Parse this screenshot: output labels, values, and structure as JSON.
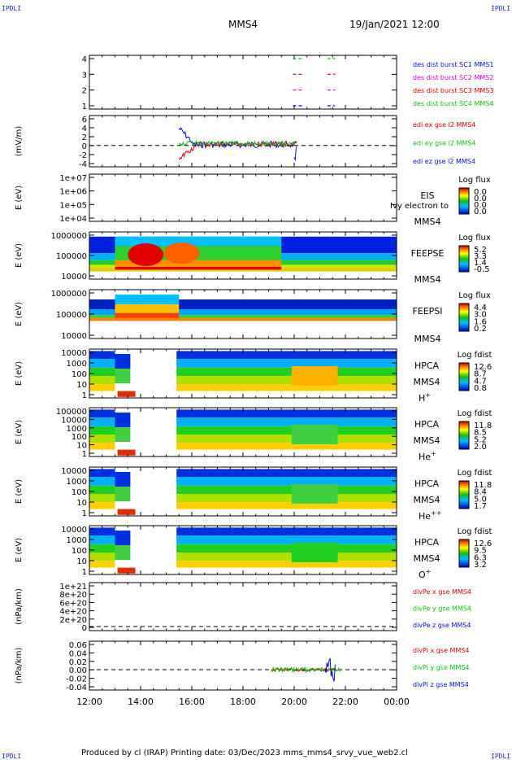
{
  "corners": {
    "tl": "IPDLI",
    "tr": "IPDLI",
    "bl": "IPDLI",
    "br": "IPDLI"
  },
  "header": {
    "spacecraft": "MMS4",
    "datetime": "19/Jan/2021 12:00"
  },
  "footer": {
    "text": "Produced by cl (IRAP)   Printing date: 03/Dec/2023   mms_mms4_srvy_vue_web2.cl"
  },
  "colors": {
    "red": "#d40000",
    "green": "#10c010",
    "blue": "#0010d0",
    "magenta": "#d000d0",
    "spec_low": "#0000cc",
    "spec_high": "#cc0000"
  },
  "time_axis": {
    "ticks": [
      "12:00",
      "14:00",
      "16:00",
      "18:00",
      "20:00",
      "22:00",
      "00:00"
    ]
  },
  "chart_data": [
    {
      "id": "burst",
      "type": "line",
      "ylabel": "",
      "yticks": [
        "4",
        "3",
        "2",
        "1"
      ],
      "legend": [
        {
          "label": "des dist burst SC1 MMS1",
          "color": "#0010d0"
        },
        {
          "label": "des dist burst SC2 MMS2",
          "color": "#d000d0"
        },
        {
          "label": "des dist burst SC3 MMS3",
          "color": "#d40000"
        },
        {
          "label": "des dist burst SC4 MMS4",
          "color": "#10c010"
        }
      ],
      "series": [
        {
          "level": 4,
          "intervals": [
            [
              19.95,
              20.35
            ],
            [
              21.3,
              21.6
            ]
          ]
        },
        {
          "level": 3,
          "intervals": [
            [
              19.95,
              20.35
            ],
            [
              21.3,
              21.6
            ]
          ]
        },
        {
          "level": 2,
          "intervals": [
            [
              19.95,
              20.35
            ],
            [
              21.3,
              21.6
            ]
          ]
        },
        {
          "level": 1,
          "intervals": [
            [
              19.95,
              20.35
            ],
            [
              21.3,
              21.6
            ]
          ]
        }
      ]
    },
    {
      "id": "edi",
      "type": "line",
      "ylabel": "(mV/m)",
      "yticks": [
        "6",
        "4",
        "2",
        "0",
        "-2",
        "-4"
      ],
      "ylim": [
        -5,
        7
      ],
      "legend": [
        {
          "label": "edi ex gse l2 MMS4",
          "color": "#d40000"
        },
        {
          "label": "edi ey gse l2 MMS4",
          "color": "#10c010"
        },
        {
          "label": "edi ez gse l2 MMS4",
          "color": "#0010d0"
        }
      ]
    },
    {
      "id": "eis",
      "type": "heatmap",
      "ylabel": "E (eV)",
      "yticks": [
        "1e+07",
        "1e+06",
        "1e+05",
        "1e+04"
      ],
      "instrument": "EIS",
      "subinstrument": "Ivy electron to",
      "spacecraft": "MMS4",
      "cbar_title": "Log flux",
      "cbar_values": [
        "0.0",
        "0.0",
        "0.0",
        "0.0"
      ]
    },
    {
      "id": "feepse",
      "type": "heatmap",
      "ylabel": "E (eV)",
      "yticks": [
        "1000000",
        "100000",
        "10000"
      ],
      "instrument": "FEEPSE",
      "spacecraft": "MMS4",
      "cbar_title": "Log flux",
      "cbar_values": [
        "5.2",
        "3.3",
        "1.4",
        "-0.5"
      ]
    },
    {
      "id": "feepsi",
      "type": "heatmap",
      "ylabel": "E (eV)",
      "yticks": [
        "1000000",
        "100000",
        "10000"
      ],
      "instrument": "FEEPSI",
      "spacecraft": "MMS4",
      "cbar_title": "Log flux",
      "cbar_values": [
        "4.4",
        "3.0",
        "1.6",
        "0.2"
      ]
    },
    {
      "id": "hpca_h",
      "type": "heatmap",
      "ylabel": "E (eV)",
      "yticks": [
        "10000",
        "1000",
        "100",
        "10",
        "1"
      ],
      "instrument": "HPCA",
      "spacecraft": "MMS4",
      "species": "H",
      "charge": "+",
      "cbar_title": "Log fdist",
      "cbar_values": [
        "12.6",
        "8.7",
        "4.7",
        "0.8"
      ]
    },
    {
      "id": "hpca_he1",
      "type": "heatmap",
      "ylabel": "E (eV)",
      "yticks": [
        "100000",
        "10000",
        "1000",
        "100",
        "10",
        "1"
      ],
      "instrument": "HPCA",
      "spacecraft": "MMS4",
      "species": "He",
      "charge": "+",
      "cbar_title": "Log fdist",
      "cbar_values": [
        "11.8",
        "8.5",
        "5.2",
        "2.0"
      ]
    },
    {
      "id": "hpca_he2",
      "type": "heatmap",
      "ylabel": "E (eV)",
      "yticks": [
        "10000",
        "1000",
        "100",
        "10",
        "1"
      ],
      "instrument": "HPCA",
      "spacecraft": "MMS4",
      "species": "He",
      "charge": "++",
      "cbar_title": "Log fdist",
      "cbar_values": [
        "11.8",
        "8.4",
        "5.0",
        "1.7"
      ]
    },
    {
      "id": "hpca_o",
      "type": "heatmap",
      "ylabel": "E (eV)",
      "yticks": [
        "10000",
        "1000",
        "100",
        "10",
        "1"
      ],
      "instrument": "HPCA",
      "spacecraft": "MMS4",
      "species": "O",
      "charge": "+",
      "cbar_title": "Log fdist",
      "cbar_values": [
        "12.6",
        "9.5",
        "6.3",
        "3.2"
      ]
    },
    {
      "id": "divpe",
      "type": "line",
      "ylabel": "(nPa/km)",
      "yticks": [
        "1e+21",
        "8e+20",
        "6e+20",
        "4e+20",
        "2e+20",
        "0"
      ],
      "legend": [
        {
          "label": "divPe x gse MMS4",
          "color": "#d40000"
        },
        {
          "label": "divPe y gse MMS4",
          "color": "#10c010"
        },
        {
          "label": "divPe z gse MMS4",
          "color": "#0010d0"
        }
      ]
    },
    {
      "id": "divpi",
      "type": "line",
      "ylabel": "(nPa/km)",
      "yticks": [
        "0.06",
        "0.04",
        "0.02",
        "0.00",
        "-0.02",
        "-0.04"
      ],
      "ylim": [
        -0.05,
        0.07
      ],
      "legend": [
        {
          "label": "divPi x gse MMS4",
          "color": "#d40000"
        },
        {
          "label": "divPi y gse MMS4",
          "color": "#10c010"
        },
        {
          "label": "divPi z gse MMS4",
          "color": "#0010d0"
        }
      ]
    }
  ]
}
